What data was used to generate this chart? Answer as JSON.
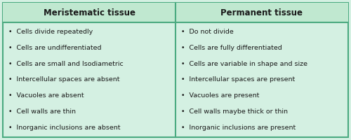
{
  "title_left": "Meristematic tissue",
  "title_right": "Permanent tissue",
  "left_items": [
    "Cells divide repeatedly",
    "Cells are undifferentiated",
    "Cells are small and Isodiametric",
    "Intercellular spaces are absent",
    "Vacuoles are absent",
    "Cell walls are thin",
    "Inorganic inclusions are absent"
  ],
  "right_items": [
    "Do not divide",
    "Cells are fully differentiated",
    "Cells are variable in shape and size",
    "Intercellular spaces are present",
    "Vacuoles are present",
    "Cell walls maybe thick or thin",
    "Inorganic inclusions are present"
  ],
  "bg_color": "#d4f0e2",
  "border_color": "#4aaa80",
  "header_bg": "#c0e8d0",
  "text_color": "#1a1a1a",
  "bullet": "•",
  "fig_width": 5.0,
  "fig_height": 2.0,
  "dpi": 100
}
